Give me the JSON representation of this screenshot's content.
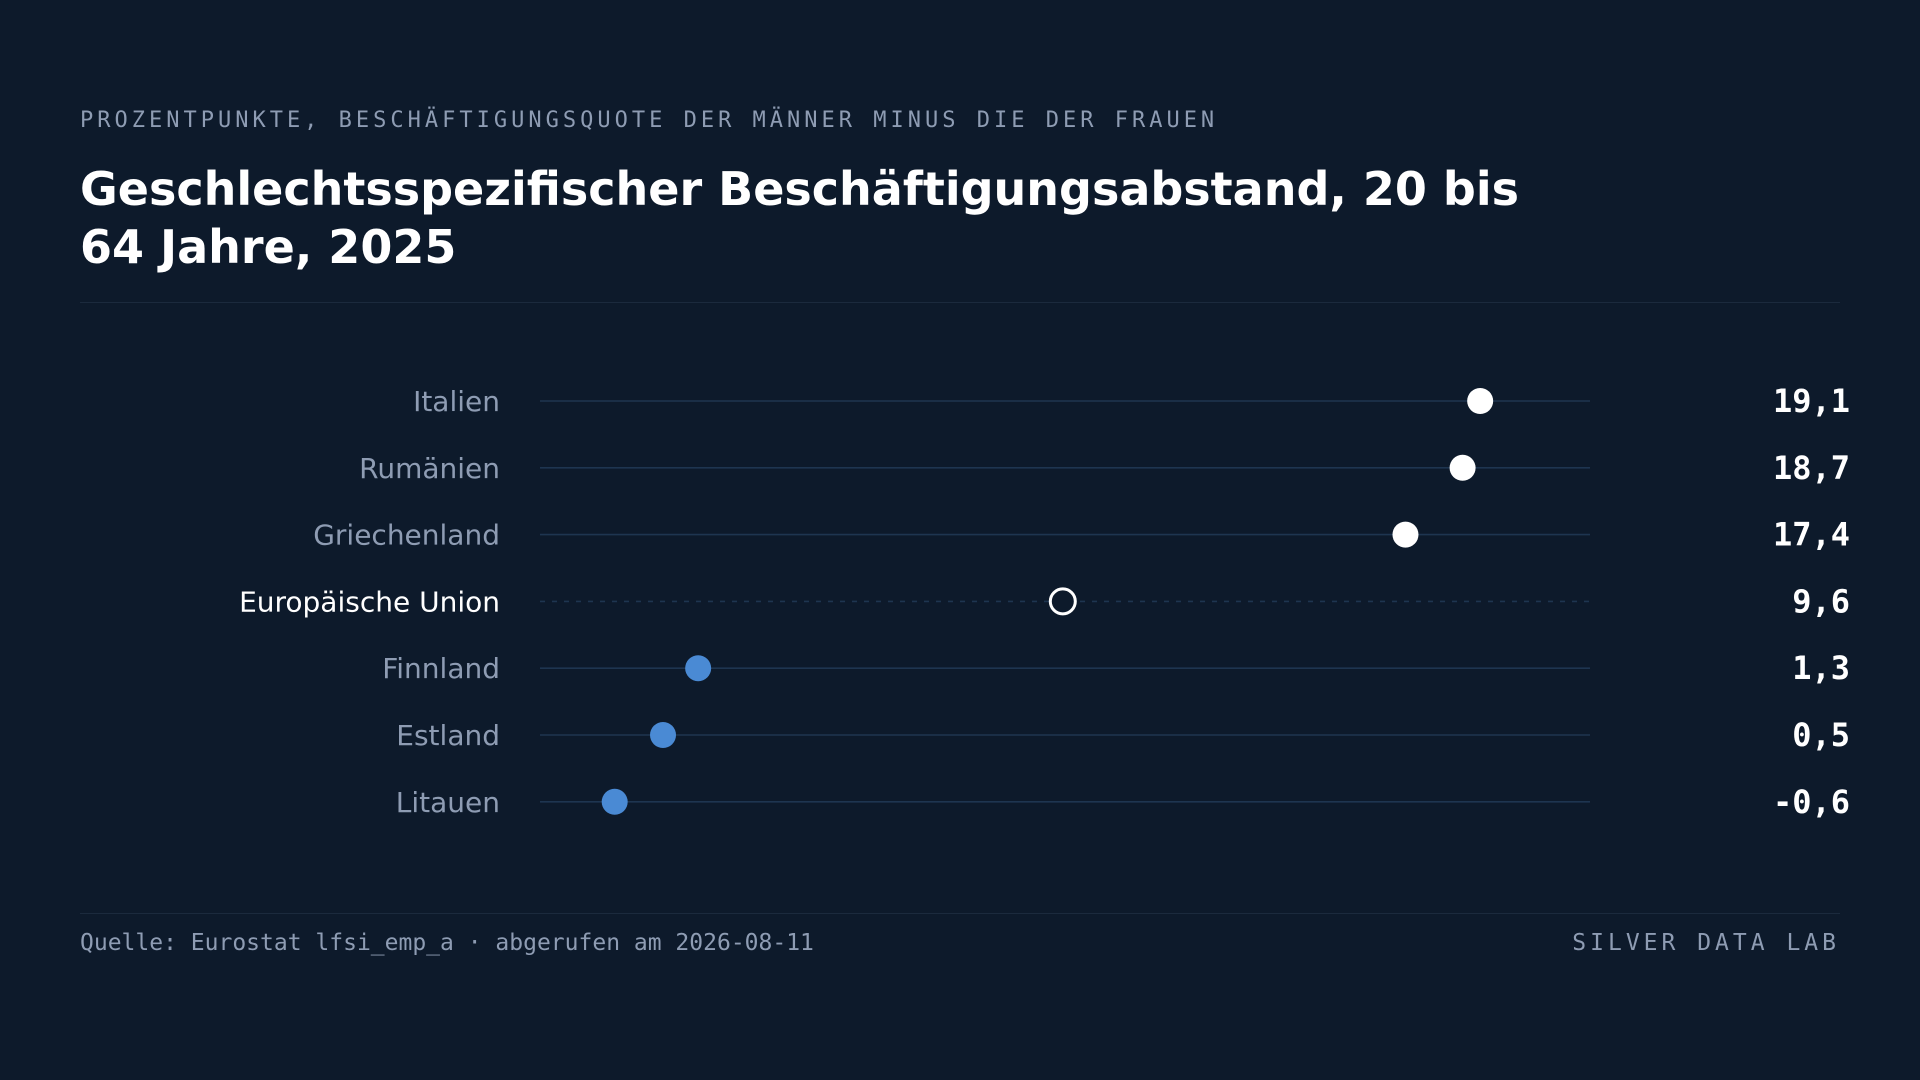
{
  "header": {
    "eyebrow": "PROZENTPUNKTE, BESCHÄFTIGUNGSQUOTE DER MÄNNER MINUS DIE DER FRAUEN",
    "title": "Geschlechtsspezifischer Beschäftigungsabstand, 20 bis 64 Jahre, 2025"
  },
  "footer": {
    "source": "Quelle: Eurostat lfsi_emp_a · abgerufen am 2026-08-11",
    "brand": "SILVER DATA LAB"
  },
  "colors": {
    "background": "#0d1a2b",
    "high_dot": "#ffffff",
    "low_dot": "#4a8ad4",
    "reference_dot_stroke": "#ffffff",
    "track": "#1e3550",
    "label": "#8e9cb3",
    "reference_label": "#ffffff",
    "value": "#ffffff"
  },
  "chart_data": {
    "type": "dot",
    "title": "Geschlechtsspezifischer Beschäftigungsabstand, 20 bis 64 Jahre, 2025",
    "subtitle": "PROZENTPUNKTE, BESCHÄFTIGUNGSQUOTE DER MÄNNER MINUS DIE DER FRAUEN",
    "xlim": [
      -2.3,
      21.6
    ],
    "grid": false,
    "legend": "none",
    "categories": [
      "Italien",
      "Rumänien",
      "Griechenland",
      "Europäische Union",
      "Finnland",
      "Estland",
      "Litauen"
    ],
    "values": [
      19.1,
      18.7,
      17.4,
      9.6,
      1.3,
      0.5,
      -0.6
    ],
    "value_labels": [
      "19,1",
      "18,7",
      "17,4",
      "9,6",
      "1,3",
      "0,5",
      "-0,6"
    ],
    "highlight": [
      false,
      false,
      false,
      true,
      false,
      false,
      false
    ]
  }
}
